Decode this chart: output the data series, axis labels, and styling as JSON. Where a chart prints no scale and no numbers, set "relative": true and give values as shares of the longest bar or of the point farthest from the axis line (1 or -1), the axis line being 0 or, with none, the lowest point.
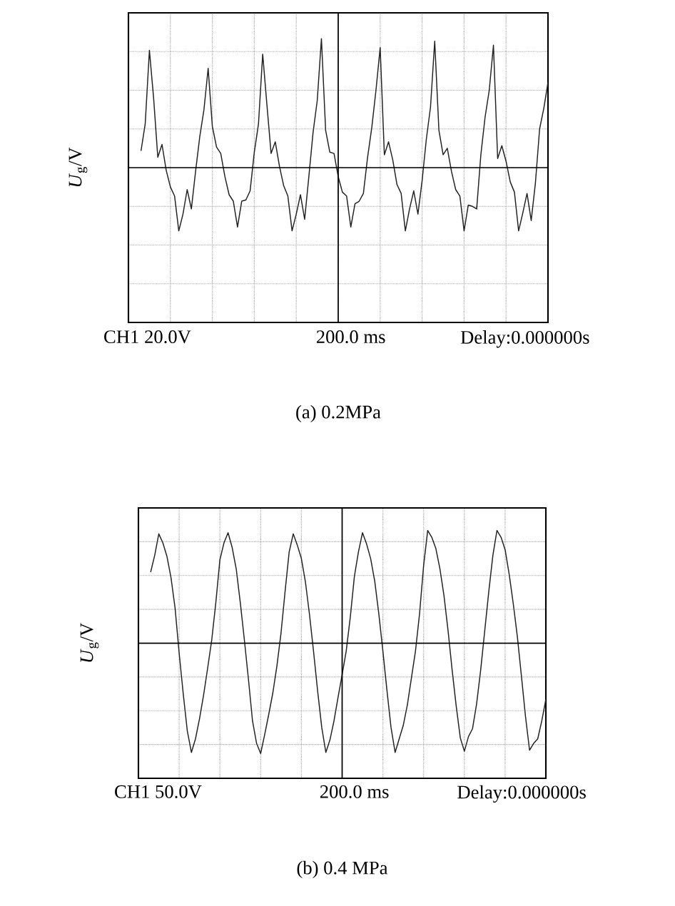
{
  "chart_data": [
    {
      "type": "line",
      "title": "(a) 0.2MPa",
      "ylabel": "*U*$_{g}$/V",
      "relative": true,
      "grid": true,
      "color": "#222222",
      "annotations": [
        "CH1 20.0V",
        "200.0 ms",
        "Delay:0.000000s"
      ],
      "categories": [
        null,
        null,
        null,
        null,
        null,
        null,
        null,
        null,
        null,
        null,
        null,
        null,
        null,
        null,
        null,
        null,
        null,
        null,
        null,
        null,
        null,
        null,
        null,
        null,
        null,
        null,
        null,
        null,
        null,
        null,
        null,
        null,
        null,
        null,
        null,
        null,
        null,
        null,
        null,
        null,
        null,
        null,
        null,
        null,
        null,
        null,
        null,
        null,
        null,
        null,
        null,
        null,
        null,
        null,
        null,
        null,
        null,
        null,
        null,
        null,
        null,
        null,
        null,
        null,
        null,
        null,
        null,
        null,
        null,
        null,
        null,
        null,
        null,
        null,
        null,
        null,
        null,
        null,
        null,
        null,
        null,
        null,
        null,
        null,
        null,
        null,
        null,
        null,
        null,
        null,
        null,
        null,
        null,
        null,
        null,
        null,
        null,
        null,
        null,
        null,
        null
      ],
      "values": [
        null,
        null,
        null,
        0.13,
        0.34,
        0.91,
        0.54,
        0.08,
        0.18,
        -0.02,
        -0.15,
        -0.22,
        -0.49,
        -0.36,
        -0.17,
        -0.32,
        -0.03,
        0.24,
        0.45,
        0.77,
        0.32,
        0.16,
        0.11,
        -0.07,
        -0.21,
        -0.26,
        -0.46,
        -0.26,
        -0.25,
        -0.18,
        0.12,
        0.34,
        0.88,
        0.49,
        0.11,
        0.2,
        0.01,
        -0.14,
        -0.22,
        -0.49,
        -0.36,
        -0.21,
        -0.4,
        -0.07,
        0.27,
        0.52,
        1.0,
        0.29,
        0.12,
        0.11,
        -0.07,
        -0.19,
        -0.22,
        -0.46,
        -0.28,
        -0.26,
        -0.2,
        0.08,
        0.31,
        0.6,
        0.93,
        0.1,
        0.2,
        0.06,
        -0.13,
        -0.2,
        -0.49,
        -0.32,
        -0.18,
        -0.36,
        -0.1,
        0.22,
        0.47,
        0.98,
        0.29,
        0.1,
        0.15,
        -0.03,
        -0.17,
        -0.22,
        -0.49,
        -0.29,
        -0.3,
        -0.32,
        0.1,
        0.39,
        0.6,
        0.95,
        0.07,
        0.17,
        0.05,
        -0.11,
        -0.19,
        -0.49,
        -0.35,
        -0.2,
        -0.41,
        -0.12,
        0.3,
        0.46,
        0.66
      ]
    },
    {
      "type": "line",
      "title": "(b) 0.4 MPa",
      "ylabel": "*U*$_{g}$/V",
      "relative": true,
      "grid": true,
      "color": "#222222",
      "annotations": [
        "CH1 50.0V",
        "200.0 ms",
        "Delay:0.000000s"
      ],
      "categories": [
        null,
        null,
        null,
        null,
        null,
        null,
        null,
        null,
        null,
        null,
        null,
        null,
        null,
        null,
        null,
        null,
        null,
        null,
        null,
        null,
        null,
        null,
        null,
        null,
        null,
        null,
        null,
        null,
        null,
        null,
        null,
        null,
        null,
        null,
        null,
        null,
        null,
        null,
        null,
        null,
        null,
        null,
        null,
        null,
        null,
        null,
        null,
        null,
        null,
        null,
        null,
        null,
        null,
        null,
        null,
        null,
        null,
        null,
        null,
        null,
        null,
        null,
        null,
        null,
        null,
        null,
        null,
        null,
        null,
        null,
        null,
        null,
        null,
        null,
        null,
        null,
        null,
        null,
        null,
        null,
        null,
        null,
        null,
        null,
        null,
        null,
        null,
        null,
        null,
        null,
        null,
        null,
        null,
        null,
        null,
        null,
        null,
        null,
        null,
        null,
        null
      ],
      "values": [
        null,
        null,
        null,
        0.63,
        0.78,
        0.97,
        0.89,
        0.77,
        0.58,
        0.31,
        -0.09,
        -0.45,
        -0.78,
        -0.97,
        -0.85,
        -0.67,
        -0.46,
        -0.22,
        0.03,
        0.36,
        0.74,
        0.89,
        0.98,
        0.85,
        0.66,
        0.36,
        0.03,
        -0.32,
        -0.69,
        -0.89,
        -0.98,
        -0.81,
        -0.63,
        -0.44,
        -0.2,
        0.09,
        0.46,
        0.81,
        0.97,
        0.87,
        0.75,
        0.54,
        0.25,
        -0.08,
        -0.43,
        -0.75,
        -0.97,
        -0.86,
        -0.69,
        -0.48,
        -0.28,
        -0.07,
        0.23,
        0.59,
        0.81,
        0.98,
        0.88,
        0.75,
        0.55,
        0.26,
        -0.07,
        -0.42,
        -0.75,
        -0.97,
        -0.85,
        -0.73,
        -0.55,
        -0.31,
        -0.07,
        0.26,
        0.69,
        1.0,
        0.94,
        0.84,
        0.66,
        0.42,
        0.11,
        -0.24,
        -0.56,
        -0.84,
        -0.96,
        -0.83,
        -0.76,
        -0.54,
        -0.24,
        0.11,
        0.46,
        0.78,
        1.0,
        0.94,
        0.83,
        0.61,
        0.35,
        0.06,
        -0.29,
        -0.65,
        -0.95,
        -0.89,
        -0.85,
        -0.69,
        -0.5
      ]
    }
  ]
}
